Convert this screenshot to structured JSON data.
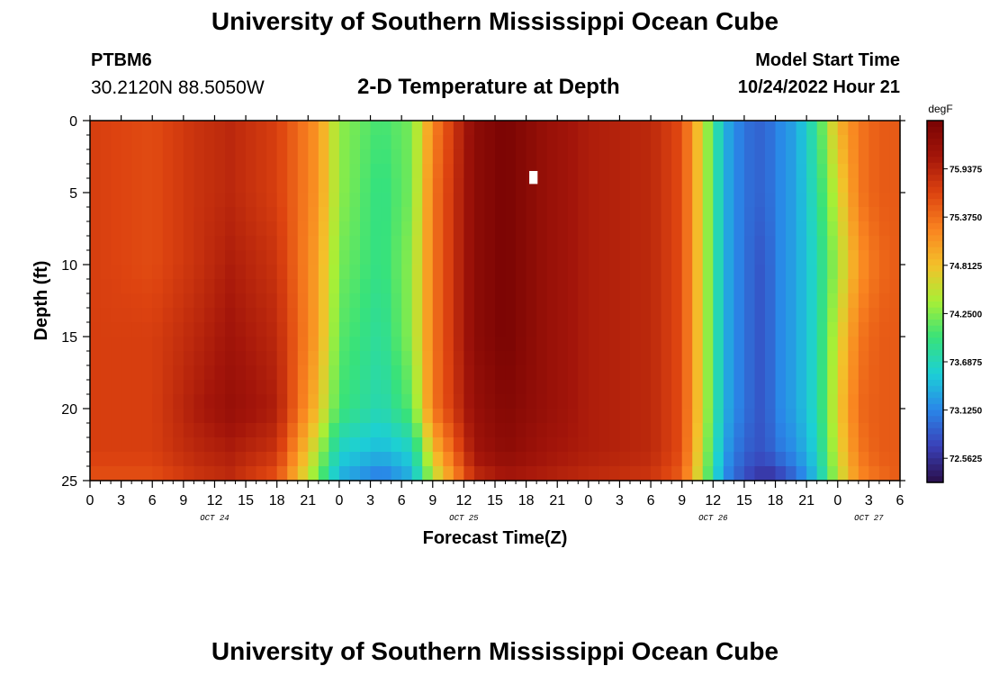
{
  "header": {
    "title": "University of Southern Mississippi Ocean Cube",
    "station": "PTBM6",
    "latlon": "30.2120N  88.5050W",
    "subtitle": "2-D Temperature at Depth",
    "model_start_label": "Model Start Time",
    "model_start_value": "10/24/2022 Hour 21"
  },
  "footer": {
    "title": "University of Southern Mississippi Ocean Cube"
  },
  "colors": {
    "colormap": [
      "#2a0f4a",
      "#3a40b8",
      "#2a86e8",
      "#1ccfd6",
      "#38e27a",
      "#a8ef36",
      "#f4c02a",
      "#f98320",
      "#dd4310",
      "#a3150a",
      "#7a0403"
    ],
    "missing_cell": "#ffffff"
  },
  "chart_data": {
    "type": "heatmap",
    "title": "2-D Temperature at Depth",
    "xlabel": "Forecast Time(Z)",
    "ylabel": "Depth (ft)",
    "colorbar_label": "degF",
    "colorbar_ticks": [
      "75.9375",
      "75.3750",
      "74.8125",
      "74.2500",
      "73.6875",
      "73.1250",
      "72.5625"
    ],
    "colorbar_values": [
      75.9375,
      75.375,
      74.8125,
      74.25,
      73.6875,
      73.125,
      72.5625
    ],
    "vrange": [
      72.28125,
      76.5
    ],
    "x_ticks": [
      "0",
      "3",
      "6",
      "9",
      "12",
      "15",
      "18",
      "21",
      "0",
      "3",
      "6",
      "9",
      "12",
      "15",
      "18",
      "21",
      "0",
      "3",
      "6",
      "9",
      "12",
      "15",
      "18",
      "21",
      "0",
      "3",
      "6"
    ],
    "x_range_hours": [
      0,
      78
    ],
    "day_labels": [
      {
        "label": "OCT 24",
        "hour": 12
      },
      {
        "label": "OCT 25",
        "hour": 36
      },
      {
        "label": "OCT 26",
        "hour": 60
      },
      {
        "label": "OCT 27",
        "hour": 75
      }
    ],
    "y_ticks": [
      "0",
      "5",
      "10",
      "15",
      "20",
      "25"
    ],
    "y_range_ft": [
      0,
      25
    ],
    "hours": [
      0,
      6,
      10,
      13.5,
      18,
      22,
      24,
      28,
      31,
      33,
      37,
      40,
      44,
      48,
      54,
      57,
      59,
      61,
      63,
      65,
      66,
      68,
      70,
      72,
      74,
      76,
      78
    ],
    "depths_ft": [
      0,
      5,
      10,
      15,
      20,
      23,
      24.5,
      25
    ],
    "temperature_degF": [
      [
        75.7,
        75.6,
        75.8,
        75.9,
        75.7,
        75.1,
        74.3,
        74.0,
        74.2,
        75.2,
        76.3,
        76.5,
        76.2,
        76.0,
        75.9,
        75.6,
        74.6,
        73.4,
        73.0,
        72.9,
        73.1,
        73.3,
        73.9,
        74.9,
        75.3,
        75.5,
        75.5
      ],
      [
        75.7,
        75.6,
        75.8,
        75.9,
        75.7,
        75.1,
        74.3,
        73.9,
        74.2,
        75.3,
        76.3,
        76.5,
        76.2,
        76.0,
        75.9,
        75.6,
        74.6,
        73.4,
        73.0,
        72.9,
        73.1,
        73.3,
        73.8,
        74.6,
        75.3,
        75.5,
        75.5
      ],
      [
        75.7,
        75.6,
        75.8,
        76.0,
        75.8,
        75.0,
        74.2,
        73.9,
        74.3,
        75.3,
        76.3,
        76.5,
        76.2,
        76.0,
        75.9,
        75.6,
        74.6,
        73.4,
        73.0,
        72.8,
        73.1,
        73.3,
        73.7,
        74.4,
        75.1,
        75.4,
        75.5
      ],
      [
        75.7,
        75.7,
        75.9,
        76.1,
        75.9,
        75.0,
        74.1,
        73.8,
        74.3,
        75.3,
        76.3,
        76.5,
        76.2,
        76.0,
        75.9,
        75.6,
        74.6,
        73.4,
        73.0,
        72.8,
        73.1,
        73.3,
        73.7,
        74.6,
        75.3,
        75.5,
        75.5
      ],
      [
        75.7,
        75.7,
        76.0,
        76.2,
        76.0,
        74.8,
        74.0,
        73.7,
        74.1,
        75.3,
        76.2,
        76.4,
        76.2,
        76.0,
        75.9,
        75.6,
        74.6,
        73.4,
        73.0,
        72.8,
        73.1,
        73.3,
        73.7,
        74.7,
        75.4,
        75.5,
        75.5
      ],
      [
        75.7,
        75.7,
        75.9,
        76.0,
        75.8,
        74.4,
        73.6,
        73.4,
        73.6,
        74.8,
        76.1,
        76.3,
        76.1,
        76.0,
        75.9,
        75.6,
        74.5,
        73.3,
        72.9,
        72.8,
        73.0,
        73.2,
        73.6,
        74.6,
        75.3,
        75.5,
        75.5
      ],
      [
        75.6,
        75.6,
        75.8,
        75.9,
        75.6,
        74.2,
        73.4,
        73.1,
        73.4,
        74.5,
        75.9,
        76.1,
        76.0,
        75.9,
        75.8,
        75.5,
        74.4,
        73.2,
        72.8,
        72.6,
        72.7,
        73.0,
        73.5,
        74.5,
        75.2,
        75.4,
        75.5
      ],
      [
        75.6,
        75.6,
        75.8,
        75.9,
        75.6,
        74.1,
        73.3,
        73.0,
        73.3,
        74.4,
        75.8,
        76.0,
        75.9,
        75.9,
        75.8,
        75.5,
        74.4,
        73.2,
        72.7,
        72.4,
        72.5,
        72.9,
        73.4,
        74.4,
        75.2,
        75.4,
        75.5
      ]
    ]
  }
}
